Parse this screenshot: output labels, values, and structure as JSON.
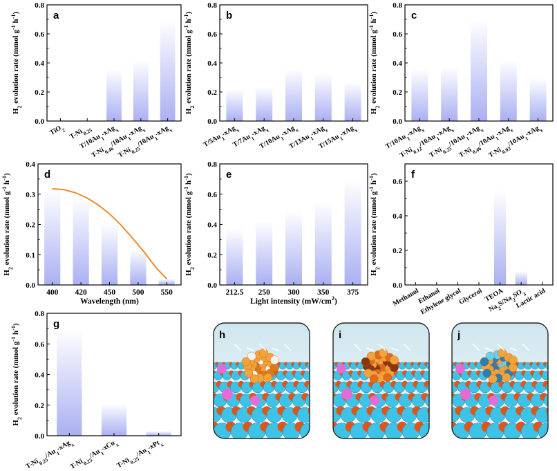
{
  "figure": {
    "bar_gradient": [
      "#ffffff",
      "#aab0f2"
    ],
    "curve_color": "#f08a28",
    "render_panels": [
      {
        "label": "h",
        "variant": "h"
      },
      {
        "label": "i",
        "variant": "i"
      },
      {
        "label": "j",
        "variant": "j"
      }
    ]
  },
  "chart_data": [
    {
      "panel": "a",
      "type": "bar",
      "categories": [
        "TiO2",
        "T-Ni0.25",
        "T/10Au1-xAgx",
        "T-Ni0.46/10Au1-xAgx",
        "T-Ni0.25/10Au1-xAgx"
      ],
      "values": [
        0,
        0,
        0.36,
        0.42,
        0.7
      ],
      "ylabel": "H2 evolution rate (mmol g-1 h-1)",
      "xlabel": "",
      "ylim": [
        0,
        0.8
      ],
      "yticks": [
        0.0,
        0.2,
        0.4,
        0.6,
        0.8
      ]
    },
    {
      "panel": "b",
      "type": "bar",
      "categories": [
        "T/5Au1-xAgx",
        "T/7Au1-xAgx",
        "T/10Au1-xAgx",
        "T/13Au1-xAgx",
        "T/15Au1-xAgx"
      ],
      "values": [
        0.22,
        0.235,
        0.36,
        0.325,
        0.27
      ],
      "ylabel": "H2 evolution rate (mmol g-1 h-1)",
      "xlabel": "",
      "ylim": [
        0,
        0.8
      ],
      "yticks": [
        0.0,
        0.2,
        0.4,
        0.6,
        0.8
      ]
    },
    {
      "panel": "c",
      "type": "bar",
      "categories": [
        "T/10Au1-xAgx",
        "T-Ni0.12/10Au1-xAgx",
        "T-Ni0.25/10Au1-xAgx",
        "T-Ni0.46/10Au1-xAgx",
        "T-Ni0.93/10Au1-xAgx"
      ],
      "values": [
        0.36,
        0.375,
        0.7,
        0.42,
        0.295
      ],
      "ylabel": "H2 evolution rate (mmol g-1 h-1)",
      "xlabel": "",
      "ylim": [
        0,
        0.8
      ],
      "yticks": [
        0.0,
        0.2,
        0.4,
        0.6,
        0.8
      ]
    },
    {
      "panel": "d",
      "type": "bar",
      "categories": [
        "400",
        "420",
        "450",
        "500",
        "550"
      ],
      "values": [
        0.315,
        0.29,
        0.205,
        0.12,
        0.02
      ],
      "ylabel": "H2 evolution rate (mmol g-1 h-1)",
      "xlabel": "Wavelength (nm)",
      "ylim": [
        0,
        0.4
      ],
      "yticks": [
        0.0,
        0.1,
        0.2,
        0.3,
        0.4
      ],
      "curve": [
        0.318,
        0.315,
        0.305,
        0.288,
        0.265,
        0.235,
        0.198,
        0.155,
        0.11,
        0.06,
        0.02
      ]
    },
    {
      "panel": "e",
      "type": "bar",
      "categories": [
        "212.5",
        "250",
        "300",
        "350",
        "375"
      ],
      "values": [
        0.375,
        0.425,
        0.49,
        0.55,
        0.7
      ],
      "ylabel": "H2 evolution rate (mmol g-1 h-1)",
      "xlabel": "Light intensity (mW/cm2)",
      "ylim": [
        0,
        0.8
      ],
      "yticks": [
        0.0,
        0.2,
        0.4,
        0.6,
        0.8
      ]
    },
    {
      "panel": "f",
      "type": "bar",
      "categories": [
        "Methanol",
        "Ethanol",
        "Ethylene glycol",
        "Glycerol",
        "TEOA",
        "Na2S/Na2SO3",
        "Lactic acid"
      ],
      "values": [
        0,
        0,
        0,
        0,
        0.55,
        0.08,
        0
      ],
      "ylabel": "H2 evolution rate (mmol g-1 h-1)",
      "xlabel": "",
      "ylim": [
        0,
        0.7
      ],
      "yticks": [
        0.0,
        0.2,
        0.4,
        0.6
      ]
    },
    {
      "panel": "g",
      "type": "bar",
      "categories": [
        "T-Ni0.25/Au1-xAgx",
        "T-Ni0.25/Au1-xCux",
        "T-Ni0.25/Au1-xPtx"
      ],
      "values": [
        0.7,
        0.21,
        0.03
      ],
      "ylabel": "H2 evolution rate (mmol g-1 h-1)",
      "xlabel": "",
      "ylim": [
        0,
        0.8
      ],
      "yticks": [
        0.0,
        0.2,
        0.4,
        0.6,
        0.8
      ]
    }
  ]
}
